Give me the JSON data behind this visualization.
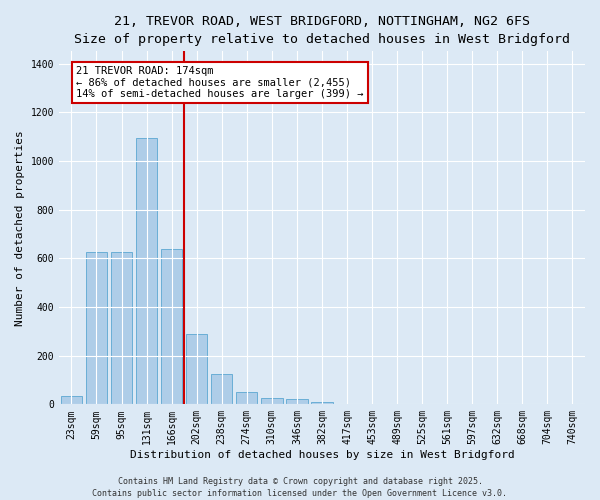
{
  "title_line1": "21, TREVOR ROAD, WEST BRIDGFORD, NOTTINGHAM, NG2 6FS",
  "title_line2": "Size of property relative to detached houses in West Bridgford",
  "xlabel": "Distribution of detached houses by size in West Bridgford",
  "ylabel": "Number of detached properties",
  "bar_labels": [
    "23sqm",
    "59sqm",
    "95sqm",
    "131sqm",
    "166sqm",
    "202sqm",
    "238sqm",
    "274sqm",
    "310sqm",
    "346sqm",
    "382sqm",
    "417sqm",
    "453sqm",
    "489sqm",
    "525sqm",
    "561sqm",
    "597sqm",
    "632sqm",
    "668sqm",
    "704sqm",
    "740sqm"
  ],
  "bar_values": [
    35,
    625,
    625,
    1095,
    640,
    290,
    125,
    52,
    28,
    20,
    8,
    3,
    2,
    1,
    1,
    0,
    0,
    0,
    0,
    0,
    0
  ],
  "bar_color": "#aecde8",
  "bar_edgecolor": "#6aaed6",
  "background_color": "#dce9f5",
  "grid_color": "#ffffff",
  "vline_color": "#cc0000",
  "annotation_text": "21 TREVOR ROAD: 174sqm\n← 86% of detached houses are smaller (2,455)\n14% of semi-detached houses are larger (399) →",
  "annotation_box_facecolor": "#ffffff",
  "annotation_box_edgecolor": "#cc0000",
  "ylim": [
    0,
    1450
  ],
  "yticks": [
    0,
    200,
    400,
    600,
    800,
    1000,
    1200,
    1400
  ],
  "footer_line1": "Contains HM Land Registry data © Crown copyright and database right 2025.",
  "footer_line2": "Contains public sector information licensed under the Open Government Licence v3.0.",
  "title_fontsize": 9.5,
  "subtitle_fontsize": 9,
  "axis_label_fontsize": 8,
  "tick_fontsize": 7,
  "annotation_fontsize": 7.5,
  "footer_fontsize": 6
}
